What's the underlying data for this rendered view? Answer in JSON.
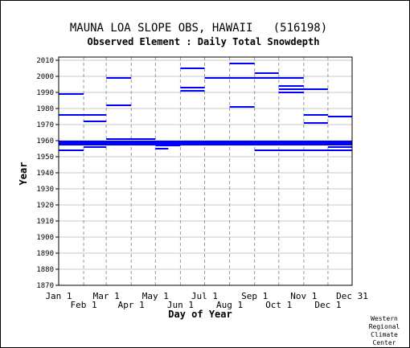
{
  "chart_data": {
    "type": "line",
    "title": "MAUNA LOA SLOPE OBS, HAWAII   (516198)",
    "subtitle": "Observed Element : Daily Total Snowdepth",
    "xlabel": "Day of Year",
    "ylabel": "Year",
    "ylim": [
      1870,
      2012
    ],
    "yticks": [
      1870,
      1880,
      1890,
      1900,
      1910,
      1920,
      1930,
      1940,
      1950,
      1960,
      1970,
      1980,
      1990,
      2000,
      2010
    ],
    "xlim": [
      1,
      365
    ],
    "xticks_top": [
      {
        "label": "Jan 1",
        "day": 1
      },
      {
        "label": "Mar 1",
        "day": 60
      },
      {
        "label": "May 1",
        "day": 121
      },
      {
        "label": "Jul 1",
        "day": 182
      },
      {
        "label": "Sep 1",
        "day": 244
      },
      {
        "label": "Nov 1",
        "day": 305
      },
      {
        "label": "Dec 31",
        "day": 365
      }
    ],
    "xticks_bottom": [
      {
        "label": "Feb 1",
        "day": 32
      },
      {
        "label": "Apr 1",
        "day": 91
      },
      {
        "label": "Jun 1",
        "day": 152
      },
      {
        "label": "Aug 1",
        "day": 213
      },
      {
        "label": "Oct 1",
        "day": 274
      },
      {
        "label": "Dec 1",
        "day": 335
      }
    ],
    "grid": true,
    "series_color": "#0000ff",
    "segments": [
      {
        "year": 2008,
        "start_day": 213,
        "end_day": 244
      },
      {
        "year": 2005,
        "start_day": 152,
        "end_day": 182
      },
      {
        "year": 2002,
        "start_day": 244,
        "end_day": 274
      },
      {
        "year": 1999,
        "start_day": 60,
        "end_day": 91
      },
      {
        "year": 1999,
        "start_day": 182,
        "end_day": 305
      },
      {
        "year": 1994,
        "start_day": 274,
        "end_day": 305
      },
      {
        "year": 1993,
        "start_day": 152,
        "end_day": 182
      },
      {
        "year": 1992,
        "start_day": 274,
        "end_day": 335
      },
      {
        "year": 1991,
        "start_day": 152,
        "end_day": 182
      },
      {
        "year": 1990,
        "start_day": 274,
        "end_day": 305
      },
      {
        "year": 1989,
        "start_day": 1,
        "end_day": 32
      },
      {
        "year": 1982,
        "start_day": 60,
        "end_day": 91
      },
      {
        "year": 1981,
        "start_day": 213,
        "end_day": 244
      },
      {
        "year": 1976,
        "start_day": 1,
        "end_day": 60
      },
      {
        "year": 1976,
        "start_day": 305,
        "end_day": 335
      },
      {
        "year": 1975,
        "start_day": 335,
        "end_day": 365
      },
      {
        "year": 1972,
        "start_day": 32,
        "end_day": 60
      },
      {
        "year": 1971,
        "start_day": 305,
        "end_day": 335
      },
      {
        "year": 1961,
        "start_day": 60,
        "end_day": 121
      },
      {
        "year": 1959,
        "start_day": 1,
        "end_day": 365,
        "heavy": true
      },
      {
        "year": 1958,
        "start_day": 1,
        "end_day": 365,
        "heavy": true
      },
      {
        "year": 1957,
        "start_day": 121,
        "end_day": 152
      },
      {
        "year": 1956,
        "start_day": 32,
        "end_day": 60
      },
      {
        "year": 1956,
        "start_day": 335,
        "end_day": 365
      },
      {
        "year": 1955,
        "start_day": 121,
        "end_day": 137
      },
      {
        "year": 1954,
        "start_day": 1,
        "end_day": 32
      },
      {
        "year": 1954,
        "start_day": 244,
        "end_day": 365
      }
    ]
  },
  "credit": [
    "Western",
    "Regional",
    "Climate",
    "Center"
  ]
}
